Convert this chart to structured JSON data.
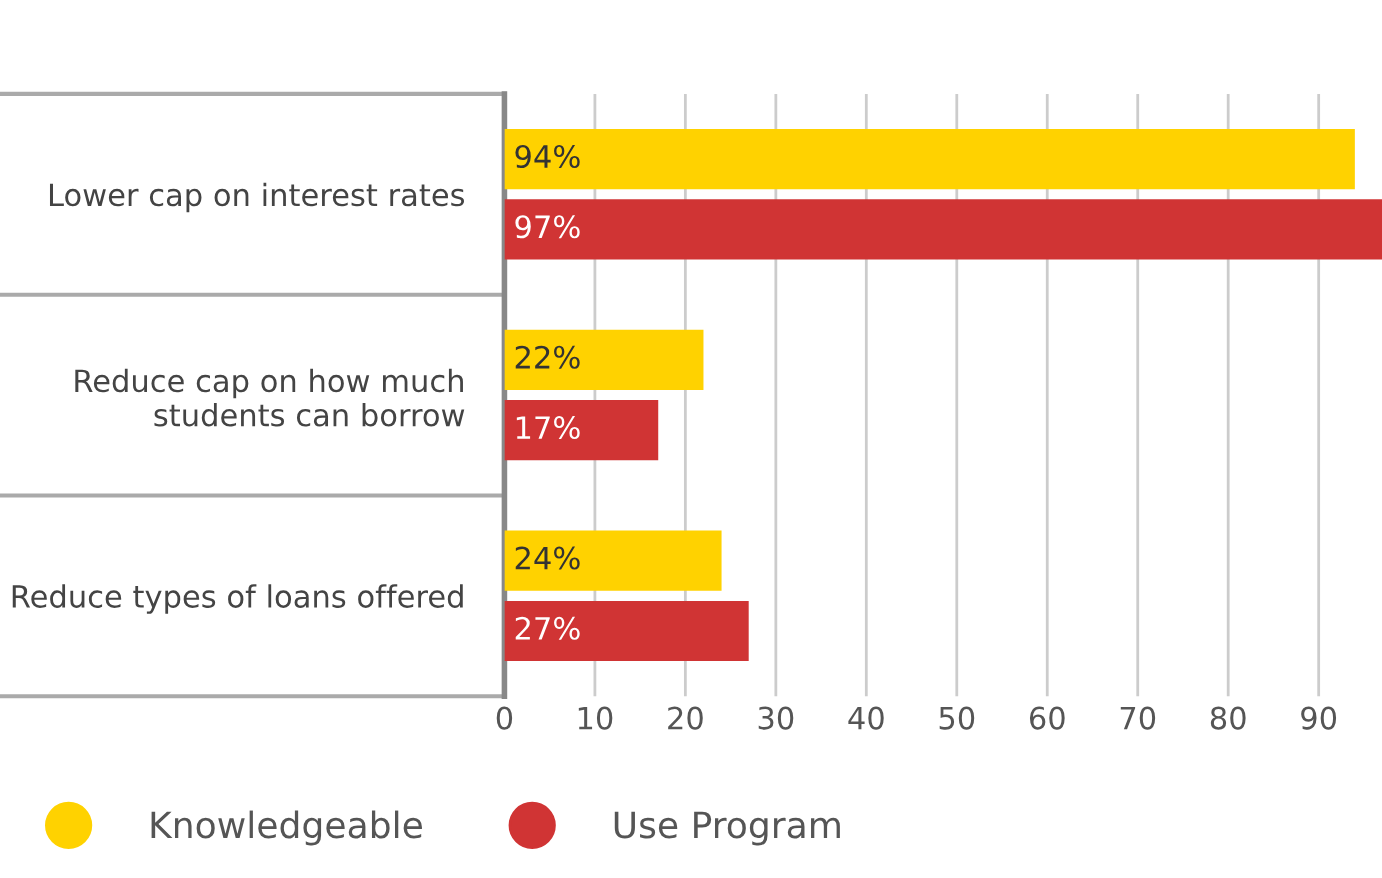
{
  "chart_data": {
    "type": "bar",
    "orientation": "horizontal",
    "categories": [
      "Lower cap on interest rates",
      "Reduce cap on how much\nstudents can borrow",
      "Reduce types of loans offered"
    ],
    "series": [
      {
        "name": "Knowledgeable",
        "color": "#ffd200",
        "values": [
          94,
          22,
          24
        ],
        "value_labels": [
          "94%",
          "22%",
          "24%"
        ]
      },
      {
        "name": "Use Program",
        "color": "#d03434",
        "values": [
          97,
          17,
          27
        ],
        "value_labels": [
          "97%",
          "17%",
          "27%"
        ]
      }
    ],
    "xlim": [
      0,
      97
    ],
    "xticks": [
      0,
      10,
      20,
      30,
      40,
      50,
      60,
      70,
      80,
      90
    ],
    "grid": "x",
    "legend": "bottom left"
  }
}
